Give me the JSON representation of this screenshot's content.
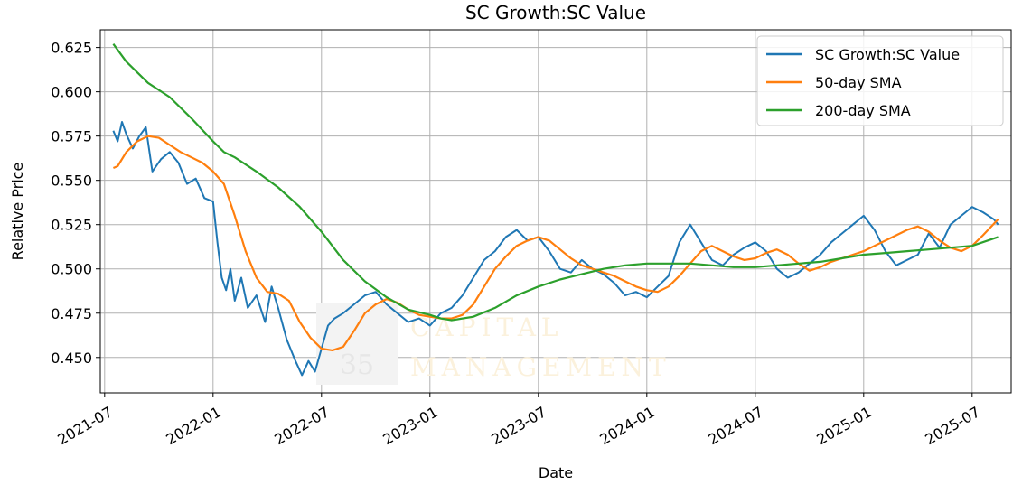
{
  "chart_data": {
    "type": "line",
    "title": "SC Growth:SC Value",
    "xlabel": "Date",
    "ylabel": "Relative Price",
    "x_ticks": [
      "2021-07",
      "2022-01",
      "2022-07",
      "2023-01",
      "2023-07",
      "2024-01",
      "2024-07",
      "2025-01",
      "2025-07"
    ],
    "y_ticks": [
      "0.450",
      "0.475",
      "0.500",
      "0.525",
      "0.550",
      "0.575",
      "0.600",
      "0.625"
    ],
    "xlim": [
      2021.48,
      2025.68
    ],
    "ylim": [
      0.43,
      0.635
    ],
    "grid": true,
    "legend_position": "top-right",
    "watermark": {
      "number": "35",
      "text_line1": "CAPITAL",
      "text_line2": "MANAGEMENT"
    },
    "series": [
      {
        "name": "SC Growth:SC Value",
        "color": "#1f77b4",
        "x": [
          2021.54,
          2021.56,
          2021.58,
          2021.6,
          2021.63,
          2021.66,
          2021.69,
          2021.72,
          2021.76,
          2021.8,
          2021.84,
          2021.88,
          2021.92,
          2021.96,
          2022.0,
          2022.02,
          2022.04,
          2022.06,
          2022.08,
          2022.1,
          2022.13,
          2022.16,
          2022.2,
          2022.24,
          2022.27,
          2022.3,
          2022.34,
          2022.38,
          2022.41,
          2022.44,
          2022.47,
          2022.5,
          2022.53,
          2022.56,
          2022.6,
          2022.65,
          2022.7,
          2022.75,
          2022.8,
          2022.85,
          2022.9,
          2022.95,
          2023.0,
          2023.05,
          2023.1,
          2023.15,
          2023.2,
          2023.25,
          2023.3,
          2023.35,
          2023.4,
          2023.45,
          2023.5,
          2023.55,
          2023.6,
          2023.65,
          2023.7,
          2023.75,
          2023.8,
          2023.85,
          2023.9,
          2023.95,
          2024.0,
          2024.05,
          2024.1,
          2024.15,
          2024.2,
          2024.25,
          2024.3,
          2024.35,
          2024.4,
          2024.45,
          2024.5,
          2024.55,
          2024.6,
          2024.65,
          2024.7,
          2024.75,
          2024.8,
          2024.85,
          2024.9,
          2024.95,
          2025.0,
          2025.05,
          2025.1,
          2025.15,
          2025.2,
          2025.25,
          2025.3,
          2025.35,
          2025.4,
          2025.45,
          2025.5,
          2025.55,
          2025.6,
          2025.62
        ],
        "values": [
          0.578,
          0.572,
          0.583,
          0.576,
          0.568,
          0.575,
          0.58,
          0.555,
          0.562,
          0.566,
          0.56,
          0.548,
          0.551,
          0.54,
          0.538,
          0.515,
          0.495,
          0.488,
          0.5,
          0.482,
          0.495,
          0.478,
          0.485,
          0.47,
          0.49,
          0.478,
          0.46,
          0.448,
          0.44,
          0.448,
          0.442,
          0.455,
          0.468,
          0.472,
          0.475,
          0.48,
          0.485,
          0.487,
          0.48,
          0.475,
          0.47,
          0.472,
          0.468,
          0.475,
          0.478,
          0.485,
          0.495,
          0.505,
          0.51,
          0.518,
          0.522,
          0.516,
          0.518,
          0.51,
          0.5,
          0.498,
          0.505,
          0.5,
          0.497,
          0.492,
          0.485,
          0.487,
          0.484,
          0.49,
          0.496,
          0.515,
          0.525,
          0.515,
          0.505,
          0.502,
          0.508,
          0.512,
          0.515,
          0.51,
          0.5,
          0.495,
          0.498,
          0.503,
          0.508,
          0.515,
          0.52,
          0.525,
          0.53,
          0.522,
          0.51,
          0.502,
          0.505,
          0.508,
          0.52,
          0.512,
          0.525,
          0.53,
          0.535,
          0.532,
          0.528,
          0.525
        ]
      },
      {
        "name": "50-day SMA",
        "color": "#ff7f0e",
        "x": [
          2021.54,
          2021.56,
          2021.6,
          2021.65,
          2021.7,
          2021.75,
          2021.8,
          2021.85,
          2021.9,
          2021.95,
          2022.0,
          2022.05,
          2022.1,
          2022.15,
          2022.2,
          2022.25,
          2022.3,
          2022.35,
          2022.4,
          2022.45,
          2022.5,
          2022.55,
          2022.6,
          2022.65,
          2022.7,
          2022.75,
          2022.8,
          2022.85,
          2022.9,
          2022.95,
          2023.0,
          2023.05,
          2023.1,
          2023.15,
          2023.2,
          2023.25,
          2023.3,
          2023.35,
          2023.4,
          2023.45,
          2023.5,
          2023.55,
          2023.6,
          2023.65,
          2023.7,
          2023.75,
          2023.8,
          2023.85,
          2023.9,
          2023.95,
          2024.0,
          2024.05,
          2024.1,
          2024.15,
          2024.2,
          2024.25,
          2024.3,
          2024.35,
          2024.4,
          2024.45,
          2024.5,
          2024.55,
          2024.6,
          2024.65,
          2024.7,
          2024.75,
          2024.8,
          2024.85,
          2024.9,
          2024.95,
          2025.0,
          2025.05,
          2025.1,
          2025.15,
          2025.2,
          2025.25,
          2025.3,
          2025.35,
          2025.4,
          2025.45,
          2025.5,
          2025.55,
          2025.62
        ],
        "values": [
          0.557,
          0.558,
          0.566,
          0.572,
          0.575,
          0.574,
          0.57,
          0.566,
          0.563,
          0.56,
          0.555,
          0.548,
          0.53,
          0.51,
          0.495,
          0.487,
          0.486,
          0.482,
          0.47,
          0.461,
          0.455,
          0.454,
          0.456,
          0.465,
          0.475,
          0.48,
          0.483,
          0.481,
          0.477,
          0.474,
          0.473,
          0.472,
          0.472,
          0.474,
          0.48,
          0.49,
          0.5,
          0.507,
          0.513,
          0.516,
          0.518,
          0.516,
          0.511,
          0.506,
          0.502,
          0.5,
          0.498,
          0.496,
          0.493,
          0.49,
          0.488,
          0.487,
          0.49,
          0.496,
          0.503,
          0.51,
          0.513,
          0.51,
          0.507,
          0.505,
          0.506,
          0.509,
          0.511,
          0.508,
          0.503,
          0.499,
          0.501,
          0.504,
          0.506,
          0.508,
          0.51,
          0.513,
          0.516,
          0.519,
          0.522,
          0.524,
          0.521,
          0.516,
          0.512,
          0.51,
          0.513,
          0.519,
          0.528
        ]
      },
      {
        "name": "200-day SMA",
        "color": "#2ca02c",
        "x": [
          2021.54,
          2021.6,
          2021.7,
          2021.8,
          2021.9,
          2022.0,
          2022.05,
          2022.1,
          2022.2,
          2022.3,
          2022.4,
          2022.5,
          2022.6,
          2022.7,
          2022.8,
          2022.9,
          2023.0,
          2023.05,
          2023.1,
          2023.2,
          2023.3,
          2023.4,
          2023.5,
          2023.6,
          2023.7,
          2023.8,
          2023.9,
          2024.0,
          2024.1,
          2024.2,
          2024.3,
          2024.4,
          2024.5,
          2024.6,
          2024.7,
          2024.8,
          2024.9,
          2025.0,
          2025.1,
          2025.2,
          2025.3,
          2025.4,
          2025.5,
          2025.62
        ],
        "values": [
          0.627,
          0.617,
          0.605,
          0.597,
          0.585,
          0.572,
          0.566,
          0.563,
          0.555,
          0.546,
          0.535,
          0.521,
          0.505,
          0.493,
          0.484,
          0.477,
          0.474,
          0.472,
          0.471,
          0.473,
          0.478,
          0.485,
          0.49,
          0.494,
          0.497,
          0.5,
          0.502,
          0.503,
          0.503,
          0.503,
          0.502,
          0.501,
          0.501,
          0.502,
          0.503,
          0.504,
          0.506,
          0.508,
          0.509,
          0.51,
          0.511,
          0.512,
          0.513,
          0.518
        ]
      }
    ]
  }
}
